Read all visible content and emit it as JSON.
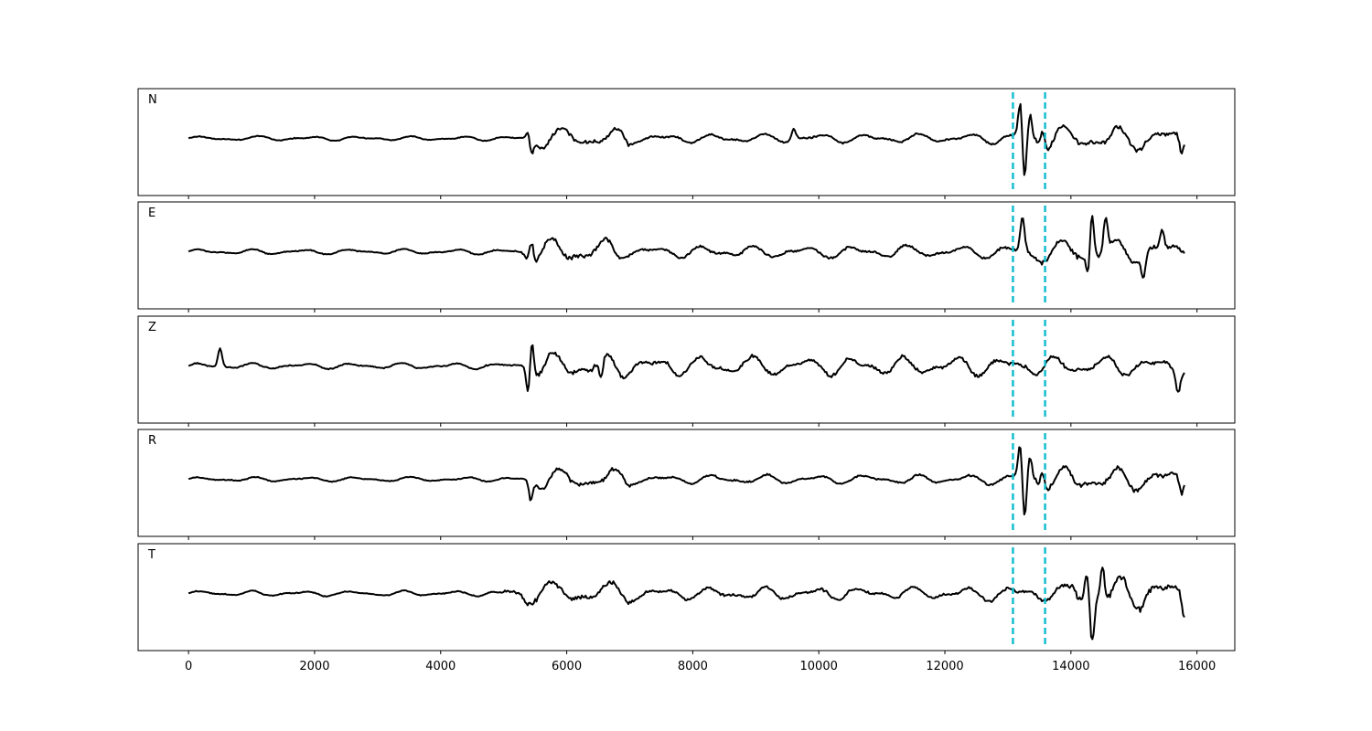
{
  "chart_data": {
    "type": "line",
    "title": "",
    "xlabel": "",
    "ylabel": "",
    "xlim": [
      -800,
      16600
    ],
    "xticks": [
      0,
      2000,
      4000,
      6000,
      8000,
      10000,
      12000,
      14000,
      16000
    ],
    "xtick_labels": [
      "0",
      "2000",
      "4000",
      "6000",
      "8000",
      "10000",
      "12000",
      "14000",
      "16000"
    ],
    "grid": false,
    "line_color": "#000000",
    "pick_color": "#17becf",
    "picks": [
      13080,
      13590
    ],
    "n_samples": 15800,
    "panels": [
      {
        "label": "N",
        "noise_amp": 0.06,
        "seed": 11,
        "segments": [
          {
            "start": 5350,
            "end": 7000,
            "amp": 0.28
          },
          {
            "start": 7000,
            "end": 12600,
            "amp": 0.12
          },
          {
            "start": 12600,
            "end": 13100,
            "amp": 0.14
          },
          {
            "start": 13100,
            "end": 15800,
            "amp": 0.32
          }
        ],
        "spikes": [
          {
            "x": 5430,
            "y": -0.45
          },
          {
            "x": 5400,
            "y": 0.3
          },
          {
            "x": 9600,
            "y": 0.25
          },
          {
            "x": 13200,
            "y": 0.82
          },
          {
            "x": 13260,
            "y": -1.0
          },
          {
            "x": 13350,
            "y": 0.45
          },
          {
            "x": 13550,
            "y": 0.35
          },
          {
            "x": 15750,
            "y": -0.35
          }
        ]
      },
      {
        "label": "E",
        "noise_amp": 0.07,
        "seed": 23,
        "segments": [
          {
            "start": 5300,
            "end": 6800,
            "amp": 0.35
          },
          {
            "start": 6800,
            "end": 12600,
            "amp": 0.16
          },
          {
            "start": 12600,
            "end": 13100,
            "amp": 0.18
          },
          {
            "start": 13100,
            "end": 15800,
            "amp": 0.32
          }
        ],
        "spikes": [
          {
            "x": 5440,
            "y": 0.45
          },
          {
            "x": 13230,
            "y": 0.7
          },
          {
            "x": 14330,
            "y": 1.0
          },
          {
            "x": 14280,
            "y": -0.55
          },
          {
            "x": 14550,
            "y": 0.75
          },
          {
            "x": 15150,
            "y": -0.45
          },
          {
            "x": 15450,
            "y": 0.4
          }
        ]
      },
      {
        "label": "Z",
        "noise_amp": 0.08,
        "seed": 37,
        "segments": [
          {
            "start": 5300,
            "end": 7200,
            "amp": 0.35
          },
          {
            "start": 7200,
            "end": 15800,
            "amp": 0.26
          }
        ],
        "spikes": [
          {
            "x": 500,
            "y": 0.4
          },
          {
            "x": 5440,
            "y": 1.0
          },
          {
            "x": 5400,
            "y": -0.7
          },
          {
            "x": 6550,
            "y": -0.4
          },
          {
            "x": 15700,
            "y": -0.4
          }
        ]
      },
      {
        "label": "R",
        "noise_amp": 0.06,
        "seed": 51,
        "segments": [
          {
            "start": 5350,
            "end": 7000,
            "amp": 0.28
          },
          {
            "start": 7000,
            "end": 12600,
            "amp": 0.12
          },
          {
            "start": 12600,
            "end": 13100,
            "amp": 0.14
          },
          {
            "start": 13100,
            "end": 15800,
            "amp": 0.32
          }
        ],
        "spikes": [
          {
            "x": 5430,
            "y": -0.45
          },
          {
            "x": 13200,
            "y": 0.82
          },
          {
            "x": 13260,
            "y": -1.0
          },
          {
            "x": 13350,
            "y": 0.45
          },
          {
            "x": 13550,
            "y": 0.35
          },
          {
            "x": 15750,
            "y": -0.35
          }
        ]
      },
      {
        "label": "T",
        "noise_amp": 0.07,
        "seed": 67,
        "segments": [
          {
            "start": 5000,
            "end": 7000,
            "amp": 0.3
          },
          {
            "start": 7000,
            "end": 12600,
            "amp": 0.17
          },
          {
            "start": 12600,
            "end": 14000,
            "amp": 0.22
          },
          {
            "start": 14000,
            "end": 15800,
            "amp": 0.45
          }
        ],
        "spikes": [
          {
            "x": 14340,
            "y": -1.0
          },
          {
            "x": 14250,
            "y": 0.6
          },
          {
            "x": 14500,
            "y": 0.72
          },
          {
            "x": 15800,
            "y": -0.4
          }
        ]
      }
    ]
  }
}
